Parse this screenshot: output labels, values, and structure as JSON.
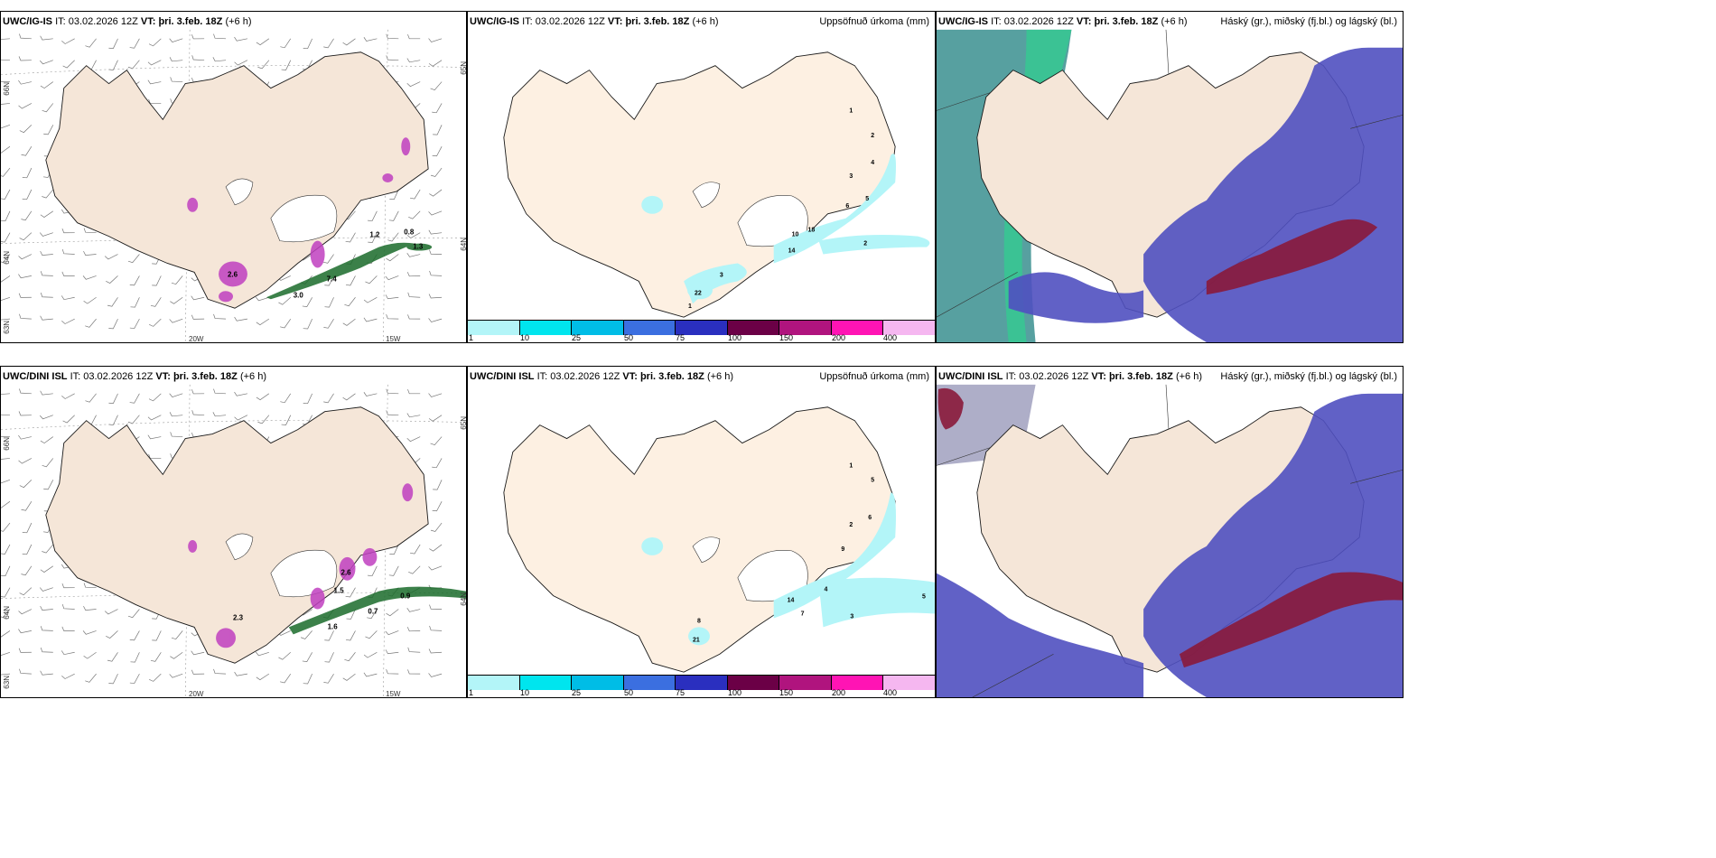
{
  "panels": [
    {
      "id": "p1",
      "model": "UWC/IG-IS",
      "it_label": "IT:",
      "it_value": "03.02.2026 12Z",
      "vt_label": "VT:",
      "vt_value": "þri. 3.feb. 18Z",
      "lead": "(+6 h)",
      "right_title": "",
      "lat_labels": [
        "66N",
        "64N",
        "63N"
      ],
      "lon_labels": [
        "20W",
        "15W"
      ],
      "edge_lat": [
        "65N",
        "64N"
      ]
    },
    {
      "id": "p2",
      "model": "UWC/IG-IS",
      "it_label": "IT:",
      "it_value": "03.02.2026 12Z",
      "vt_label": "VT:",
      "vt_value": "þri. 3.feb. 18Z",
      "lead": "(+6 h)",
      "right_title": "Uppsöfnuð úrkoma (mm)"
    },
    {
      "id": "p3",
      "model": "UWC/IG-IS",
      "it_label": "IT:",
      "it_value": "03.02.2026 12Z",
      "vt_label": "VT:",
      "vt_value": "þri. 3.feb. 18Z",
      "lead": "(+6 h)",
      "right_title": "Háský (gr.), miðský (fj.bl.) og lágský (bl.)"
    },
    {
      "id": "p4",
      "model": "UWC/DINI ISL",
      "it_label": "IT:",
      "it_value": "03.02.2026 12Z",
      "vt_label": "VT:",
      "vt_value": "þri. 3.feb. 18Z",
      "lead": "(+6 h)",
      "right_title": "",
      "lat_labels": [
        "66N",
        "64N",
        "63N"
      ],
      "lon_labels": [
        "20W",
        "15W"
      ],
      "edge_lat": [
        "65N",
        "64N"
      ]
    },
    {
      "id": "p5",
      "model": "UWC/DINI ISL",
      "it_label": "IT:",
      "it_value": "03.02.2026 12Z",
      "vt_label": "VT:",
      "vt_value": "þri. 3.feb. 18Z",
      "lead": "(+6 h)",
      "right_title": "Uppsöfnuð úrkoma (mm)"
    },
    {
      "id": "p6",
      "model": "UWC/DINI ISL",
      "it_label": "IT:",
      "it_value": "03.02.2026 12Z",
      "vt_label": "VT:",
      "vt_value": "þri. 3.feb. 18Z",
      "lead": "(+6 h)",
      "right_title": "Háský (gr.), miðský (fj.bl.) og lágský (bl.)"
    }
  ],
  "colorbar": {
    "labels": [
      "1",
      "10",
      "25",
      "50",
      "75",
      "100",
      "150",
      "200",
      "400"
    ],
    "colors": [
      "#b3f5f8",
      "#00e5ee",
      "#00bde6",
      "#3b6fe0",
      "#2a2fbf",
      "#6b0046",
      "#b0147e",
      "#ff14b4",
      "#f5b7f0"
    ]
  },
  "precip_labels_top": [
    "1",
    "2",
    "3",
    "4",
    "5",
    "6",
    "10",
    "14",
    "18",
    "2",
    "3",
    "1",
    "22"
  ],
  "precip_labels_bottom": [
    "1",
    "2",
    "5",
    "6",
    "9",
    "3",
    "4",
    "7",
    "8",
    "14",
    "21",
    "5"
  ],
  "wind_values_top": [
    "2.6",
    "0.8",
    "1.2",
    "1.3",
    "3.0",
    "7.4"
  ],
  "wind_values_bottom": [
    "2.6",
    "1.5",
    "0.9",
    "0.7",
    "2.3",
    "1.6"
  ],
  "colors": {
    "land": "#f5e6d8",
    "land_alt": "#fdf0e2",
    "coast": "#1a1a1a",
    "snow_purple": "#c040c0",
    "rain_green": "#1a6b2a",
    "sea_teal": "#3a8f8f",
    "low_cloud": "#5050c0",
    "mid_cloud": "#8a1a3a"
  }
}
